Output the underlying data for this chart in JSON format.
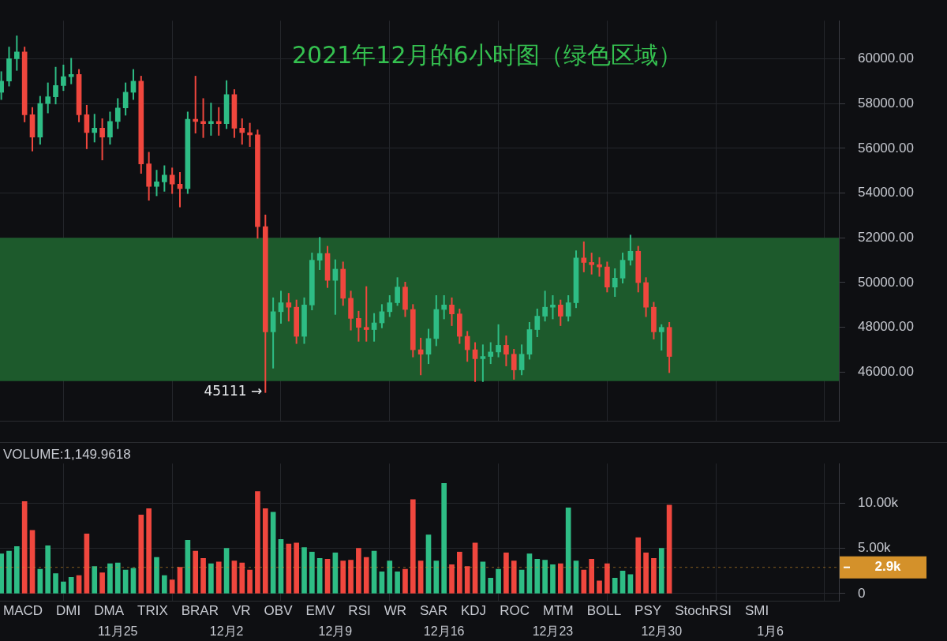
{
  "chart_data": [
    {
      "type": "candlestick",
      "title": "2021年12月的6小时图（绿色区域）",
      "x": [
        "2021-11-17T12:00",
        "2021-11-18T00:00",
        "2021-11-18T12:00",
        "2021-11-19T00:00",
        "2021-11-19T12:00",
        "2021-11-20T00:00",
        "2021-11-20T12:00",
        "2021-11-21T00:00",
        "2021-11-21T12:00",
        "2021-11-22T00:00",
        "2021-11-22T12:00",
        "2021-11-23T00:00",
        "2021-11-23T12:00",
        "2021-11-24T00:00",
        "2021-11-24T12:00",
        "2021-11-25T00:00",
        "2021-11-25T12:00",
        "2021-11-26T00:00",
        "2021-11-26T12:00",
        "2021-11-27T00:00",
        "2021-11-27T12:00",
        "2021-11-28T00:00",
        "2021-11-28T12:00",
        "2021-11-29T00:00",
        "2021-11-29T12:00",
        "2021-11-30T00:00",
        "2021-11-30T12:00",
        "2021-12-01T00:00",
        "2021-12-01T12:00",
        "2021-12-02T00:00",
        "2021-12-02T12:00",
        "2021-12-03T00:00",
        "2021-12-03T12:00",
        "2021-12-04T00:00",
        "2021-12-04T12:00",
        "2021-12-05T00:00",
        "2021-12-05T12:00",
        "2021-12-06T00:00",
        "2021-12-06T12:00",
        "2021-12-07T00:00",
        "2021-12-07T12:00",
        "2021-12-08T00:00",
        "2021-12-08T12:00",
        "2021-12-09T00:00",
        "2021-12-09T12:00",
        "2021-12-10T00:00",
        "2021-12-10T12:00",
        "2021-12-11T00:00",
        "2021-12-11T12:00",
        "2021-12-12T00:00",
        "2021-12-12T12:00",
        "2021-12-13T00:00",
        "2021-12-13T12:00",
        "2021-12-14T00:00",
        "2021-12-14T12:00",
        "2021-12-15T00:00",
        "2021-12-15T12:00",
        "2021-12-16T00:00",
        "2021-12-16T12:00",
        "2021-12-17T00:00",
        "2021-12-17T12:00",
        "2021-12-18T00:00",
        "2021-12-18T12:00",
        "2021-12-19T00:00",
        "2021-12-19T12:00",
        "2021-12-20T00:00",
        "2021-12-20T12:00",
        "2021-12-21T00:00",
        "2021-12-21T12:00",
        "2021-12-22T00:00",
        "2021-12-22T12:00",
        "2021-12-23T00:00",
        "2021-12-23T12:00",
        "2021-12-24T00:00",
        "2021-12-24T12:00",
        "2021-12-25T00:00",
        "2021-12-25T12:00",
        "2021-12-26T00:00",
        "2021-12-26T12:00",
        "2021-12-27T00:00",
        "2021-12-27T12:00",
        "2021-12-28T00:00",
        "2021-12-28T12:00",
        "2021-12-29T00:00",
        "2021-12-29T12:00",
        "2021-12-30T00:00",
        "2021-12-30T12:00"
      ],
      "ohlc": [
        [
          58500,
          59400,
          58200,
          59000
        ],
        [
          59000,
          60500,
          58800,
          60000
        ],
        [
          60000,
          61000,
          59500,
          60300
        ],
        [
          60300,
          60500,
          57200,
          57500
        ],
        [
          57500,
          57800,
          55900,
          56500
        ],
        [
          56500,
          58300,
          56200,
          58000
        ],
        [
          58000,
          58900,
          57600,
          58300
        ],
        [
          58300,
          59600,
          58000,
          58800
        ],
        [
          58800,
          59700,
          58600,
          59200
        ],
        [
          59200,
          60000,
          58900,
          59300
        ],
        [
          59300,
          59500,
          57200,
          57500
        ],
        [
          57500,
          57900,
          56000,
          56700
        ],
        [
          56700,
          57500,
          56300,
          56900
        ],
        [
          56900,
          57300,
          55500,
          56500
        ],
        [
          56500,
          57600,
          56200,
          57200
        ],
        [
          57200,
          58200,
          56900,
          57800
        ],
        [
          57800,
          58900,
          57500,
          58500
        ],
        [
          58500,
          59500,
          58200,
          59000
        ],
        [
          59000,
          59200,
          54900,
          55300
        ],
        [
          55300,
          55800,
          53700,
          54300
        ],
        [
          54300,
          55000,
          53900,
          54500
        ],
        [
          54500,
          55200,
          54100,
          54800
        ],
        [
          54800,
          55100,
          54000,
          54400
        ],
        [
          54400,
          54900,
          53400,
          54200
        ],
        [
          54200,
          57600,
          54000,
          57300
        ],
        [
          57300,
          59200,
          56700,
          57200
        ],
        [
          57200,
          58200,
          56500,
          57100
        ],
        [
          57100,
          58000,
          56600,
          57200
        ],
        [
          57200,
          57800,
          56600,
          57100
        ],
        [
          57100,
          59000,
          56900,
          58400
        ],
        [
          58400,
          58600,
          56500,
          56900
        ],
        [
          56900,
          57300,
          56200,
          56700
        ],
        [
          56700,
          57100,
          56100,
          56600
        ],
        [
          56600,
          56800,
          52000,
          52500
        ],
        [
          52500,
          53000,
          45111,
          47800
        ],
        [
          47800,
          49300,
          46200,
          48700
        ],
        [
          48700,
          49600,
          48200,
          49100
        ],
        [
          49100,
          49500,
          48300,
          48900
        ],
        [
          48900,
          49200,
          47300,
          47600
        ],
        [
          47600,
          49300,
          47300,
          49000
        ],
        [
          49000,
          51300,
          48800,
          51000
        ],
        [
          51000,
          52000,
          50600,
          51300
        ],
        [
          51300,
          51600,
          49800,
          50100
        ],
        [
          50100,
          51000,
          48600,
          50600
        ],
        [
          50600,
          50900,
          49000,
          49300
        ],
        [
          49300,
          49600,
          47900,
          48400
        ],
        [
          48400,
          48700,
          47400,
          48000
        ],
        [
          48000,
          49800,
          47400,
          47900
        ],
        [
          47900,
          48600,
          47400,
          48200
        ],
        [
          48200,
          49000,
          48000,
          48700
        ],
        [
          48700,
          49400,
          48500,
          49100
        ],
        [
          49100,
          50200,
          49000,
          49800
        ],
        [
          49800,
          50000,
          48500,
          48800
        ],
        [
          48800,
          49000,
          46700,
          47000
        ],
        [
          47000,
          47500,
          45900,
          46800
        ],
        [
          46800,
          47900,
          46400,
          47500
        ],
        [
          47500,
          49400,
          47200,
          48800
        ],
        [
          48800,
          49400,
          48400,
          49000
        ],
        [
          49000,
          49300,
          48100,
          48600
        ],
        [
          48600,
          48800,
          47300,
          47600
        ],
        [
          47600,
          47800,
          46500,
          47000
        ],
        [
          47000,
          47300,
          45600,
          46600
        ],
        [
          46600,
          47200,
          45600,
          46700
        ],
        [
          46700,
          47300,
          46400,
          46900
        ],
        [
          46900,
          48100,
          46700,
          47200
        ],
        [
          47200,
          47600,
          46300,
          46800
        ],
        [
          46800,
          47000,
          45700,
          46100
        ],
        [
          46100,
          47200,
          45900,
          46800
        ],
        [
          46800,
          48200,
          46600,
          47900
        ],
        [
          47900,
          48800,
          47600,
          48500
        ],
        [
          48500,
          49600,
          48300,
          48900
        ],
        [
          48900,
          49400,
          48400,
          49000
        ],
        [
          49000,
          49200,
          48100,
          48500
        ],
        [
          48500,
          49400,
          48300,
          49100
        ],
        [
          49100,
          51400,
          48900,
          51100
        ],
        [
          51100,
          51800,
          50500,
          50900
        ],
        [
          50900,
          51300,
          50400,
          50800
        ],
        [
          50800,
          51100,
          50300,
          50700
        ],
        [
          50700,
          50900,
          49600,
          49800
        ],
        [
          49800,
          50600,
          49400,
          50200
        ],
        [
          50200,
          51300,
          50000,
          51000
        ],
        [
          51000,
          52100,
          50800,
          51400
        ],
        [
          51400,
          51600,
          49600,
          50000
        ],
        [
          50000,
          50200,
          48500,
          48900
        ],
        [
          48900,
          49100,
          47500,
          47800
        ],
        [
          47800,
          48100,
          47000,
          48000
        ],
        [
          48000,
          48200,
          46000,
          46700
        ]
      ],
      "colors": [
        "#2ebd85",
        "#2ebd85",
        "#2ebd85",
        "#f0473e",
        "#f0473e",
        "#2ebd85",
        "#2ebd85",
        "#2ebd85",
        "#2ebd85",
        "#2ebd85",
        "#f0473e",
        "#f0473e",
        "#2ebd85",
        "#f0473e",
        "#2ebd85",
        "#2ebd85",
        "#2ebd85",
        "#2ebd85",
        "#f0473e",
        "#f0473e",
        "#2ebd85",
        "#2ebd85",
        "#f0473e",
        "#f0473e",
        "#2ebd85",
        "#f0473e",
        "#f0473e",
        "#2ebd85",
        "#f0473e",
        "#2ebd85",
        "#f0473e",
        "#f0473e",
        "#f0473e",
        "#f0473e",
        "#f0473e",
        "#2ebd85",
        "#2ebd85",
        "#f0473e",
        "#f0473e",
        "#2ebd85",
        "#2ebd85",
        "#2ebd85",
        "#f0473e",
        "#2ebd85",
        "#f0473e",
        "#f0473e",
        "#f0473e",
        "#f0473e",
        "#2ebd85",
        "#2ebd85",
        "#2ebd85",
        "#2ebd85",
        "#f0473e",
        "#f0473e",
        "#f0473e",
        "#2ebd85",
        "#2ebd85",
        "#2ebd85",
        "#f0473e",
        "#f0473e",
        "#f0473e",
        "#f0473e",
        "#2ebd85",
        "#2ebd85",
        "#2ebd85",
        "#f0473e",
        "#f0473e",
        "#2ebd85",
        "#2ebd85",
        "#2ebd85",
        "#2ebd85",
        "#2ebd85",
        "#f0473e",
        "#2ebd85",
        "#2ebd85",
        "#f0473e",
        "#f0473e",
        "#f0473e",
        "#f0473e",
        "#2ebd85",
        "#2ebd85",
        "#2ebd85",
        "#f0473e",
        "#f0473e",
        "#f0473e",
        "#2ebd85",
        "#f0473e"
      ],
      "xlim": [
        "2021-11-17T10:00",
        "2022-01-10T10:00"
      ],
      "xticks": [
        {
          "value": "2021-11-25",
          "label": null
        },
        {
          "value": "2021-12-02",
          "label": null
        },
        {
          "value": "2021-12-09",
          "label": null
        },
        {
          "value": "2021-12-16",
          "label": null
        },
        {
          "value": "2021-12-23",
          "label": null
        },
        {
          "value": "2021-12-30",
          "label": null
        },
        {
          "value": "2022-01-06",
          "label": null
        }
      ],
      "ylim": [
        43800,
        61700
      ],
      "yticks": [
        {
          "value": 46000,
          "label": "46000.00"
        },
        {
          "value": 48000,
          "label": "48000.00"
        },
        {
          "value": 50000,
          "label": "50000.00"
        },
        {
          "value": 52000,
          "label": "52000.00"
        },
        {
          "value": 54000,
          "label": "54000.00"
        },
        {
          "value": 56000,
          "label": "56000.00"
        },
        {
          "value": 58000,
          "label": "58000.00"
        },
        {
          "value": 60000,
          "label": "60000.00"
        }
      ],
      "grid": true,
      "tick_labels": "y",
      "bands": [
        {
          "axis": "y",
          "from": 45600,
          "to": 52000,
          "color": "#1d5a2c"
        }
      ],
      "annotations": [
        {
          "text": "45111 →",
          "x": "2021-12-04T12:00",
          "y": 45111
        }
      ]
    },
    {
      "type": "bar",
      "x": [
        "2021-11-17T12:00",
        "2021-11-18T00:00",
        "2021-11-18T12:00",
        "2021-11-19T00:00",
        "2021-11-19T12:00",
        "2021-11-20T00:00",
        "2021-11-20T12:00",
        "2021-11-21T00:00",
        "2021-11-21T12:00",
        "2021-11-22T00:00",
        "2021-11-22T12:00",
        "2021-11-23T00:00",
        "2021-11-23T12:00",
        "2021-11-24T00:00",
        "2021-11-24T12:00",
        "2021-11-25T00:00",
        "2021-11-25T12:00",
        "2021-11-26T00:00",
        "2021-11-26T12:00",
        "2021-11-27T00:00",
        "2021-11-27T12:00",
        "2021-11-28T00:00",
        "2021-11-28T12:00",
        "2021-11-29T00:00",
        "2021-11-29T12:00",
        "2021-11-30T00:00",
        "2021-11-30T12:00",
        "2021-12-01T00:00",
        "2021-12-01T12:00",
        "2021-12-02T00:00",
        "2021-12-02T12:00",
        "2021-12-03T00:00",
        "2021-12-03T12:00",
        "2021-12-04T00:00",
        "2021-12-04T12:00",
        "2021-12-05T00:00",
        "2021-12-05T12:00",
        "2021-12-06T00:00",
        "2021-12-06T12:00",
        "2021-12-07T00:00",
        "2021-12-07T12:00",
        "2021-12-08T00:00",
        "2021-12-08T12:00",
        "2021-12-09T00:00",
        "2021-12-09T12:00",
        "2021-12-10T00:00",
        "2021-12-10T12:00",
        "2021-12-11T00:00",
        "2021-12-11T12:00",
        "2021-12-12T00:00",
        "2021-12-12T12:00",
        "2021-12-13T00:00",
        "2021-12-13T12:00",
        "2021-12-14T00:00",
        "2021-12-14T12:00",
        "2021-12-15T00:00",
        "2021-12-15T12:00",
        "2021-12-16T00:00",
        "2021-12-16T12:00",
        "2021-12-17T00:00",
        "2021-12-17T12:00",
        "2021-12-18T00:00",
        "2021-12-18T12:00",
        "2021-12-19T00:00",
        "2021-12-19T12:00",
        "2021-12-20T00:00",
        "2021-12-20T12:00",
        "2021-12-21T00:00",
        "2021-12-21T12:00",
        "2021-12-22T00:00",
        "2021-12-22T12:00",
        "2021-12-23T00:00",
        "2021-12-23T12:00",
        "2021-12-24T00:00",
        "2021-12-24T12:00",
        "2021-12-25T00:00",
        "2021-12-25T12:00",
        "2021-12-26T00:00",
        "2021-12-26T12:00",
        "2021-12-27T00:00",
        "2021-12-27T12:00",
        "2021-12-28T00:00",
        "2021-12-28T12:00",
        "2021-12-29T00:00",
        "2021-12-29T12:00",
        "2021-12-30T00:00",
        "2021-12-30T12:00"
      ],
      "values": [
        4400,
        4700,
        5200,
        10200,
        7000,
        2700,
        5300,
        2200,
        1300,
        1800,
        2000,
        6600,
        3000,
        2300,
        3300,
        3400,
        2600,
        2800,
        8700,
        9400,
        4000,
        2000,
        1500,
        2900,
        5900,
        4700,
        3900,
        3300,
        3500,
        5000,
        3600,
        3400,
        2600,
        11300,
        9400,
        9000,
        6000,
        5500,
        5600,
        5100,
        4600,
        3900,
        3800,
        4500,
        3600,
        3700,
        5000,
        4000,
        4700,
        2400,
        3600,
        2400,
        2700,
        10400,
        3600,
        6500,
        3600,
        12200,
        3200,
        4600,
        3000,
        5600,
        3500,
        1700,
        2700,
        4500,
        3600,
        2600,
        4400,
        3800,
        3700,
        3200,
        3300,
        9500,
        3600,
        2600,
        3800,
        1400,
        3300,
        1700,
        2500,
        2100,
        6200,
        4500,
        3900,
        5000,
        9800
      ],
      "colors": [
        "#2ebd85",
        "#2ebd85",
        "#2ebd85",
        "#f0473e",
        "#f0473e",
        "#2ebd85",
        "#2ebd85",
        "#2ebd85",
        "#2ebd85",
        "#2ebd85",
        "#f0473e",
        "#f0473e",
        "#2ebd85",
        "#f0473e",
        "#2ebd85",
        "#2ebd85",
        "#2ebd85",
        "#2ebd85",
        "#f0473e",
        "#f0473e",
        "#2ebd85",
        "#2ebd85",
        "#f0473e",
        "#f0473e",
        "#2ebd85",
        "#f0473e",
        "#f0473e",
        "#2ebd85",
        "#f0473e",
        "#2ebd85",
        "#f0473e",
        "#f0473e",
        "#f0473e",
        "#f0473e",
        "#f0473e",
        "#2ebd85",
        "#2ebd85",
        "#f0473e",
        "#f0473e",
        "#2ebd85",
        "#2ebd85",
        "#2ebd85",
        "#f0473e",
        "#2ebd85",
        "#f0473e",
        "#f0473e",
        "#f0473e",
        "#f0473e",
        "#2ebd85",
        "#2ebd85",
        "#2ebd85",
        "#2ebd85",
        "#f0473e",
        "#f0473e",
        "#f0473e",
        "#2ebd85",
        "#2ebd85",
        "#2ebd85",
        "#f0473e",
        "#f0473e",
        "#f0473e",
        "#f0473e",
        "#2ebd85",
        "#2ebd85",
        "#2ebd85",
        "#f0473e",
        "#f0473e",
        "#2ebd85",
        "#2ebd85",
        "#2ebd85",
        "#2ebd85",
        "#2ebd85",
        "#f0473e",
        "#2ebd85",
        "#2ebd85",
        "#f0473e",
        "#f0473e",
        "#f0473e",
        "#f0473e",
        "#2ebd85",
        "#2ebd85",
        "#2ebd85",
        "#f0473e",
        "#f0473e",
        "#f0473e",
        "#2ebd85",
        "#f0473e"
      ],
      "xlim": [
        "2021-11-17T10:00",
        "2022-01-10T10:00"
      ],
      "xticks": [
        {
          "value": "2021-11-25",
          "label": "11月25"
        },
        {
          "value": "2021-12-02",
          "label": "12月2"
        },
        {
          "value": "2021-12-09",
          "label": "12月9"
        },
        {
          "value": "2021-12-16",
          "label": "12月16"
        },
        {
          "value": "2021-12-23",
          "label": "12月23"
        },
        {
          "value": "2021-12-30",
          "label": "12月30"
        },
        {
          "value": "2022-01-06",
          "label": "1月6"
        }
      ],
      "ylim": [
        -800,
        14400
      ],
      "yticks": [
        0,
        {
          "value": 5000,
          "label": "5.00k"
        },
        {
          "value": 10000,
          "label": "10.00k"
        }
      ],
      "grid": true,
      "ref_lines": [
        {
          "axis": "y",
          "value": 2900,
          "label": "2.9k",
          "color": "#d4912a"
        }
      ],
      "annotations": [
        "VOLUME:1,149.9618",
        "MACD",
        "DMI",
        "DMA",
        "TRIX",
        "BRAR",
        "VR",
        "OBV",
        "EMV",
        "RSI",
        "WR",
        "SAR",
        "KDJ",
        "ROC",
        "MTM",
        "BOLL",
        "PSY",
        "StochRSI",
        "SMI"
      ]
    }
  ]
}
